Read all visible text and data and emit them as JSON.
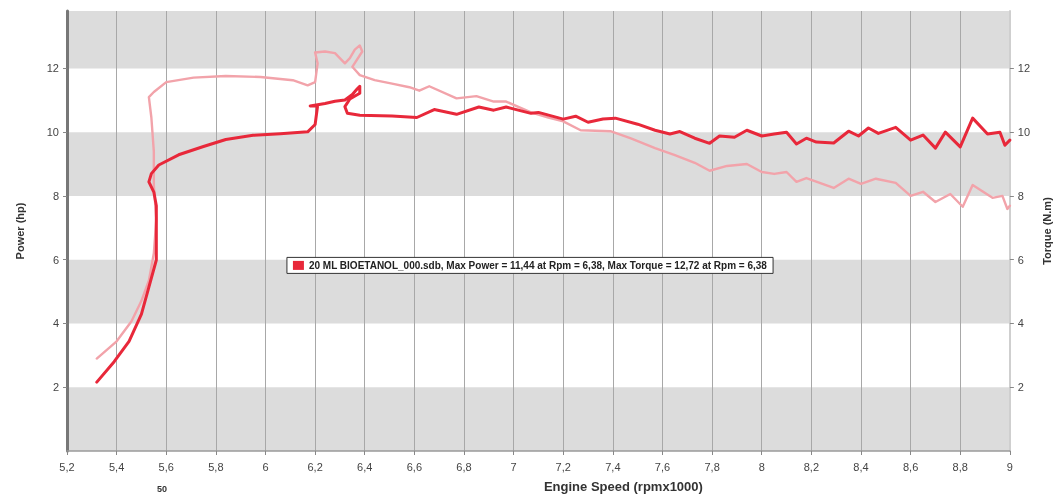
{
  "chart_data": {
    "type": "line",
    "xlabel": "Engine Speed (rpmx1000)",
    "ylabel": "Power (hp)",
    "y2label": "Torque (N.m)",
    "annotations": [
      "50"
    ],
    "series": [
      {
        "name": "20 ML BIOETANOL_000.sdb, Max Power = 11,44 at Rpm = 6,38, Max Torque = 12,72 at Rpm = 6,38",
        "color": "#e8283a",
        "x": [
          5.32,
          5.39,
          5.45,
          5.5,
          5.53,
          5.56,
          5.56,
          5.56,
          5.55,
          5.53,
          5.54,
          5.57,
          5.65,
          5.75,
          5.84,
          5.95,
          6.06,
          6.17,
          6.2,
          6.21,
          6.18,
          6.24,
          6.28,
          6.32,
          6.35,
          6.37,
          6.38,
          6.38,
          6.34,
          6.32,
          6.33,
          6.38,
          6.51,
          6.61,
          6.68,
          6.77,
          6.86,
          6.92,
          6.97,
          7.07,
          7.1,
          7.2,
          7.25,
          7.3,
          7.36,
          7.41,
          7.5,
          7.57,
          7.63,
          7.67,
          7.73,
          7.79,
          7.83,
          7.89,
          7.94,
          8.0,
          8.05,
          8.1,
          8.14,
          8.18,
          8.22,
          8.29,
          8.35,
          8.39,
          8.43,
          8.47,
          8.54,
          8.6,
          8.65,
          8.7,
          8.74,
          8.8,
          8.85,
          8.91,
          8.96,
          8.98,
          9.0
        ],
        "values": [
          2.16,
          2.8,
          3.44,
          4.29,
          5.14,
          5.99,
          6.84,
          7.69,
          8.12,
          8.44,
          8.7,
          8.97,
          9.29,
          9.55,
          9.77,
          9.9,
          9.95,
          10.01,
          10.24,
          10.83,
          10.82,
          10.9,
          10.97,
          11.01,
          11.18,
          11.36,
          11.44,
          11.22,
          11.04,
          10.8,
          10.59,
          10.53,
          10.51,
          10.46,
          10.71,
          10.56,
          10.79,
          10.69,
          10.79,
          10.59,
          10.62,
          10.41,
          10.5,
          10.31,
          10.41,
          10.44,
          10.25,
          10.06,
          9.94,
          10.02,
          9.81,
          9.65,
          9.88,
          9.84,
          10.06,
          9.88,
          9.94,
          10.0,
          9.63,
          9.81,
          9.69,
          9.66,
          10.03,
          9.88,
          10.13,
          9.96,
          10.15,
          9.75,
          9.91,
          9.5,
          10.0,
          9.54,
          10.44,
          9.94,
          10.0,
          9.59,
          9.75
        ]
      },
      {
        "color": "#f2a3aa",
        "axis": "y2",
        "x": [
          5.32,
          5.4,
          5.46,
          5.5,
          5.53,
          5.55,
          5.56,
          5.55,
          5.55,
          5.54,
          5.53,
          5.55,
          5.6,
          5.71,
          5.84,
          5.98,
          6.11,
          6.17,
          6.2,
          6.21,
          6.2,
          6.24,
          6.28,
          6.32,
          6.34,
          6.36,
          6.38,
          6.39,
          6.35,
          6.38,
          6.44,
          6.51,
          6.58,
          6.62,
          6.66,
          6.77,
          6.85,
          6.92,
          6.97,
          7.07,
          7.14,
          7.2,
          7.27,
          7.39,
          7.47,
          7.57,
          7.65,
          7.73,
          7.79,
          7.86,
          7.94,
          8.0,
          8.05,
          8.1,
          8.14,
          8.18,
          8.29,
          8.35,
          8.4,
          8.46,
          8.54,
          8.6,
          8.65,
          8.7,
          8.76,
          8.81,
          8.85,
          8.93,
          8.97,
          8.99,
          9.0
        ],
        "values": [
          2.9,
          3.44,
          4.07,
          4.71,
          5.35,
          6.2,
          7.27,
          8.33,
          9.39,
          10.46,
          11.1,
          11.26,
          11.57,
          11.71,
          11.76,
          11.73,
          11.63,
          11.47,
          11.57,
          12.16,
          12.5,
          12.53,
          12.48,
          12.16,
          12.32,
          12.59,
          12.72,
          12.53,
          12.05,
          11.79,
          11.63,
          11.52,
          11.41,
          11.3,
          11.44,
          11.06,
          11.13,
          10.96,
          10.96,
          10.62,
          10.46,
          10.34,
          10.06,
          10.03,
          9.81,
          9.5,
          9.28,
          9.04,
          8.79,
          8.94,
          9.0,
          8.75,
          8.69,
          8.75,
          8.44,
          8.56,
          8.25,
          8.54,
          8.38,
          8.54,
          8.41,
          8.0,
          8.13,
          7.81,
          8.06,
          7.66,
          8.34,
          7.94,
          8.0,
          7.59,
          7.69
        ]
      }
    ],
    "bands": [
      {
        "axis": "y",
        "from": 0,
        "to": 2,
        "color": "#dcdcdc"
      },
      {
        "axis": "y",
        "from": 4,
        "to": 6,
        "color": "#dcdcdc"
      },
      {
        "axis": "y",
        "from": 8,
        "to": 10,
        "color": "#dcdcdc"
      },
      {
        "axis": "y",
        "from": 12,
        "to": 13.8,
        "color": "#dcdcdc"
      }
    ],
    "xlim": [
      5.2,
      9
    ],
    "xticks": [
      {
        "value": 5.2,
        "label": "5,2"
      },
      {
        "value": 5.4,
        "label": "5,4"
      },
      {
        "value": 5.6,
        "label": "5,6"
      },
      {
        "value": 5.8,
        "label": "5,8"
      },
      6,
      {
        "value": 6.2,
        "label": "6,2"
      },
      {
        "value": 6.4,
        "label": "6,4"
      },
      {
        "value": 6.6,
        "label": "6,6"
      },
      {
        "value": 6.8,
        "label": "6,8"
      },
      7,
      {
        "value": 7.2,
        "label": "7,2"
      },
      {
        "value": 7.4,
        "label": "7,4"
      },
      {
        "value": 7.6,
        "label": "7,6"
      },
      {
        "value": 7.8,
        "label": "7,8"
      },
      8,
      {
        "value": 8.2,
        "label": "8,2"
      },
      {
        "value": 8.4,
        "label": "8,4"
      },
      {
        "value": 8.6,
        "label": "8,6"
      },
      {
        "value": 8.8,
        "label": "8,8"
      },
      9
    ],
    "ylim": [
      0,
      13.8
    ],
    "yticks": [
      2,
      4,
      6,
      8,
      10,
      12
    ],
    "y2lim": [
      0,
      13.8
    ],
    "y2ticks": [
      2,
      4,
      6,
      8,
      10,
      12
    ],
    "grid": "x",
    "legend": "center"
  }
}
